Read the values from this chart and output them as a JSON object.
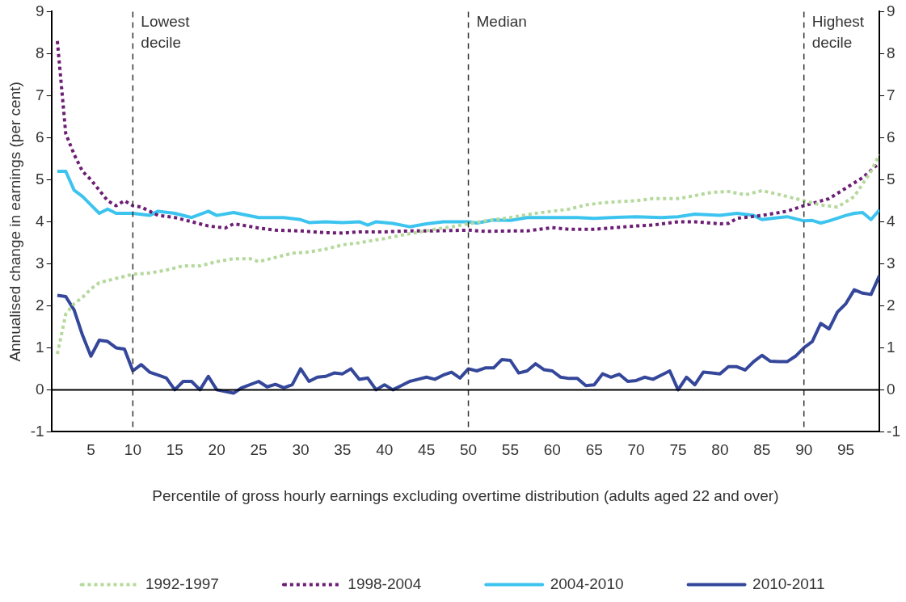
{
  "chart_data": {
    "type": "line",
    "xlabel": "Percentile of gross hourly earnings excluding overtime distribution (adults aged 22 and over)",
    "ylabel": "Annualised change in earnings (per cent)",
    "xlim": [
      0.3,
      99
    ],
    "xticks": [
      5,
      10,
      15,
      20,
      25,
      30,
      35,
      40,
      45,
      50,
      55,
      60,
      65,
      70,
      75,
      80,
      85,
      90,
      95
    ],
    "ylim": [
      -1,
      9
    ],
    "yticks": [
      -1,
      0,
      1,
      2,
      3,
      4,
      5,
      6,
      7,
      8,
      9
    ],
    "y2lim": [
      -1,
      9
    ],
    "y2ticks": [
      -1,
      0,
      1,
      2,
      3,
      4,
      5,
      6,
      7,
      8,
      9
    ],
    "grid": false,
    "legend": "bottom",
    "marker": "none",
    "ref_lines": [
      {
        "axis": "x",
        "value": 10,
        "label": "Lowest decile",
        "color": "#333333",
        "line_style": "dashed"
      },
      {
        "axis": "x",
        "value": 50,
        "label": "Median",
        "color": "#333333",
        "line_style": "dashed"
      },
      {
        "axis": "x",
        "value": 90,
        "label": "Highest decile",
        "color": "#333333",
        "line_style": "dashed"
      },
      {
        "axis": "y",
        "value": 0,
        "color": "#000000",
        "line_style": "solid"
      }
    ],
    "series": [
      {
        "name": "1992-1997",
        "color": "#b5d99c",
        "line_style": "dotted",
        "x": [
          1,
          2,
          3,
          4,
          5,
          6,
          7,
          8,
          10,
          12,
          14,
          16,
          18,
          20,
          22,
          24,
          25,
          27,
          29,
          31,
          33,
          35,
          37,
          40,
          42,
          44,
          46,
          48,
          50,
          52,
          55,
          58,
          60,
          62,
          64,
          66,
          68,
          70,
          72,
          75,
          77,
          79,
          81,
          83,
          85,
          87,
          89,
          90,
          92,
          94,
          96,
          98,
          99
        ],
        "values": [
          0.85,
          1.8,
          2.05,
          2.2,
          2.4,
          2.55,
          2.6,
          2.65,
          2.75,
          2.78,
          2.85,
          2.95,
          2.95,
          3.05,
          3.12,
          3.12,
          3.05,
          3.15,
          3.25,
          3.28,
          3.35,
          3.45,
          3.5,
          3.6,
          3.68,
          3.75,
          3.82,
          3.88,
          3.95,
          4.02,
          4.1,
          4.2,
          4.25,
          4.3,
          4.4,
          4.45,
          4.48,
          4.5,
          4.55,
          4.55,
          4.62,
          4.7,
          4.72,
          4.64,
          4.74,
          4.65,
          4.55,
          4.5,
          4.4,
          4.35,
          4.6,
          5.2,
          5.6
        ]
      },
      {
        "name": "1998-2004",
        "color": "#6c1d74",
        "line_style": "dotted",
        "x": [
          1,
          2,
          3,
          4,
          5,
          6,
          7,
          8,
          9,
          10,
          11,
          12,
          13,
          15,
          17,
          19,
          21,
          22,
          23,
          25,
          27,
          30,
          33,
          35,
          37,
          40,
          43,
          45,
          48,
          50,
          52,
          55,
          57,
          60,
          62,
          65,
          70,
          72,
          75,
          77,
          80,
          81,
          82,
          85,
          88,
          90,
          93,
          95,
          97,
          99
        ],
        "values": [
          8.3,
          6.1,
          5.6,
          5.2,
          5.0,
          4.75,
          4.5,
          4.38,
          4.5,
          4.38,
          4.35,
          4.25,
          4.15,
          4.1,
          4.0,
          3.9,
          3.85,
          3.95,
          3.92,
          3.85,
          3.8,
          3.78,
          3.74,
          3.73,
          3.76,
          3.76,
          3.78,
          3.78,
          3.79,
          3.8,
          3.77,
          3.78,
          3.78,
          3.86,
          3.82,
          3.82,
          3.9,
          3.92,
          4.0,
          4.0,
          3.95,
          3.96,
          4.08,
          4.15,
          4.25,
          4.38,
          4.55,
          4.8,
          5.05,
          5.4
        ]
      },
      {
        "name": "2004-2010",
        "color": "#3cc4ef",
        "line_style": "solid",
        "x": [
          1,
          2,
          3,
          4,
          5,
          6,
          7,
          8,
          9,
          10,
          12,
          13,
          15,
          17,
          19,
          20,
          22,
          25,
          28,
          30,
          31,
          33,
          35,
          37,
          38,
          39,
          41,
          43,
          45,
          47,
          50,
          51,
          53,
          55,
          57,
          60,
          63,
          65,
          67,
          70,
          73,
          75,
          77,
          80,
          82,
          84,
          85,
          87,
          88,
          90,
          91,
          92,
          93,
          95,
          96,
          97,
          98,
          99
        ],
        "values": [
          5.2,
          5.2,
          4.75,
          4.6,
          4.4,
          4.2,
          4.3,
          4.2,
          4.2,
          4.2,
          4.15,
          4.25,
          4.2,
          4.1,
          4.25,
          4.15,
          4.22,
          4.1,
          4.1,
          4.05,
          3.98,
          4.0,
          3.98,
          4.0,
          3.92,
          4.0,
          3.96,
          3.88,
          3.95,
          4.0,
          4.0,
          3.97,
          4.04,
          4.03,
          4.1,
          4.1,
          4.1,
          4.08,
          4.1,
          4.12,
          4.1,
          4.12,
          4.18,
          4.15,
          4.2,
          4.15,
          4.05,
          4.1,
          4.12,
          4.02,
          4.03,
          3.97,
          4.02,
          4.15,
          4.2,
          4.22,
          4.05,
          4.28
        ]
      },
      {
        "name": "2010-2011",
        "color": "#34479a",
        "line_style": "solid",
        "x": [
          1,
          2,
          3,
          4,
          5,
          6,
          7,
          8,
          9,
          10,
          11,
          12,
          13,
          14,
          15,
          16,
          17,
          18,
          19,
          20,
          22,
          23,
          25,
          26,
          27,
          28,
          29,
          30,
          31,
          32,
          33,
          34,
          35,
          36,
          37,
          38,
          39,
          40,
          41,
          42,
          43,
          44,
          45,
          46,
          47,
          48,
          49,
          50,
          51,
          52,
          53,
          54,
          55,
          56,
          57,
          58,
          59,
          60,
          61,
          62,
          63,
          64,
          65,
          66,
          67,
          68,
          69,
          70,
          71,
          72,
          73,
          74,
          75,
          76,
          77,
          78,
          79,
          80,
          81,
          82,
          83,
          84,
          85,
          86,
          87,
          88,
          89,
          90,
          91,
          92,
          93,
          94,
          95,
          96,
          97,
          98,
          99
        ],
        "values": [
          2.25,
          2.22,
          1.9,
          1.3,
          0.8,
          1.18,
          1.15,
          1.0,
          0.97,
          0.45,
          0.6,
          0.42,
          0.35,
          0.28,
          0.0,
          0.2,
          0.2,
          0.0,
          0.32,
          0.0,
          -0.08,
          0.05,
          0.2,
          0.07,
          0.13,
          0.05,
          0.12,
          0.5,
          0.2,
          0.3,
          0.32,
          0.4,
          0.38,
          0.5,
          0.25,
          0.28,
          0.0,
          0.12,
          0.0,
          0.1,
          0.2,
          0.25,
          0.3,
          0.25,
          0.35,
          0.42,
          0.28,
          0.5,
          0.45,
          0.52,
          0.52,
          0.72,
          0.7,
          0.4,
          0.45,
          0.62,
          0.48,
          0.45,
          0.3,
          0.27,
          0.27,
          0.1,
          0.12,
          0.38,
          0.3,
          0.37,
          0.2,
          0.22,
          0.3,
          0.25,
          0.35,
          0.45,
          0.0,
          0.3,
          0.12,
          0.42,
          0.4,
          0.38,
          0.55,
          0.55,
          0.47,
          0.67,
          0.82,
          0.68,
          0.67,
          0.67,
          0.8,
          1.0,
          1.15,
          1.58,
          1.45,
          1.85,
          2.05,
          2.38,
          2.3,
          2.27,
          2.72
        ]
      }
    ]
  }
}
